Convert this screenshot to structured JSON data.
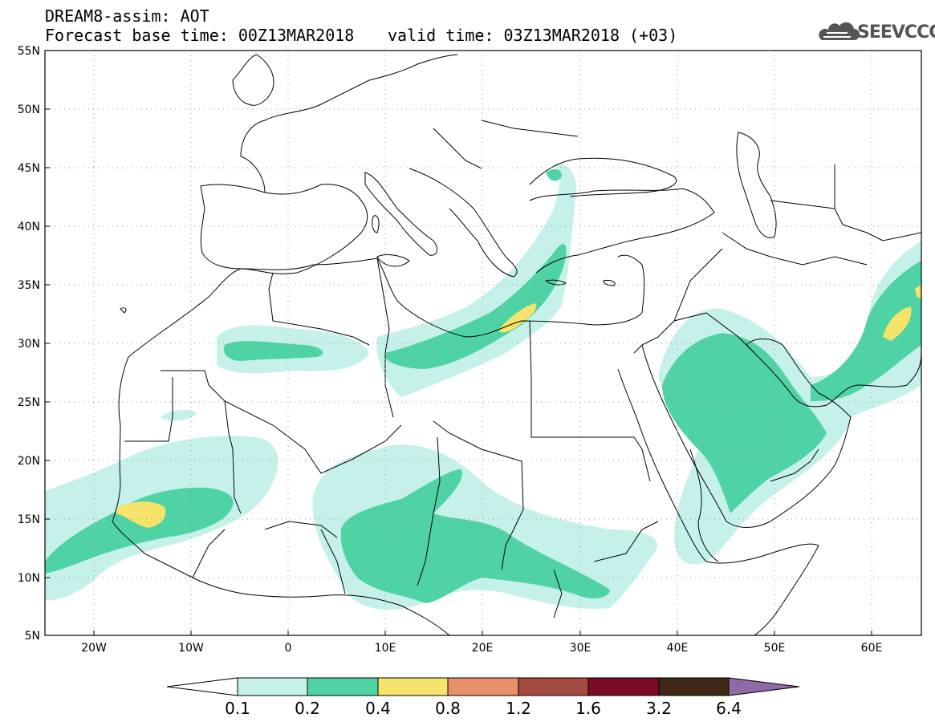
{
  "title_line1": "DREAM8-assim: AOT",
  "title_line2": "Forecast base time: 00Z13MAR2018",
  "valid_time": "valid time: 03Z13MAR2018 (+03)",
  "logo_text": "SEEVCCC",
  "logo_icon": "cloud-icon",
  "map": {
    "lat_labels": [
      "55N",
      "50N",
      "45N",
      "40N",
      "35N",
      "30N",
      "25N",
      "20N",
      "15N",
      "10N",
      "5N"
    ],
    "lon_labels": [
      "20W",
      "10W",
      "0",
      "10E",
      "20E",
      "30E",
      "40E",
      "50E",
      "60E"
    ]
  },
  "colorbar": {
    "levels": [
      "0.1",
      "0.2",
      "0.4",
      "0.8",
      "1.2",
      "1.6",
      "3.2",
      "6.4"
    ],
    "colors": [
      "#ffffff",
      "#c6f1ea",
      "#4fd3a4",
      "#f5e36c",
      "#e8906a",
      "#a4493f",
      "#7a0a25",
      "#3f2816",
      "#8e6aa6"
    ]
  }
}
